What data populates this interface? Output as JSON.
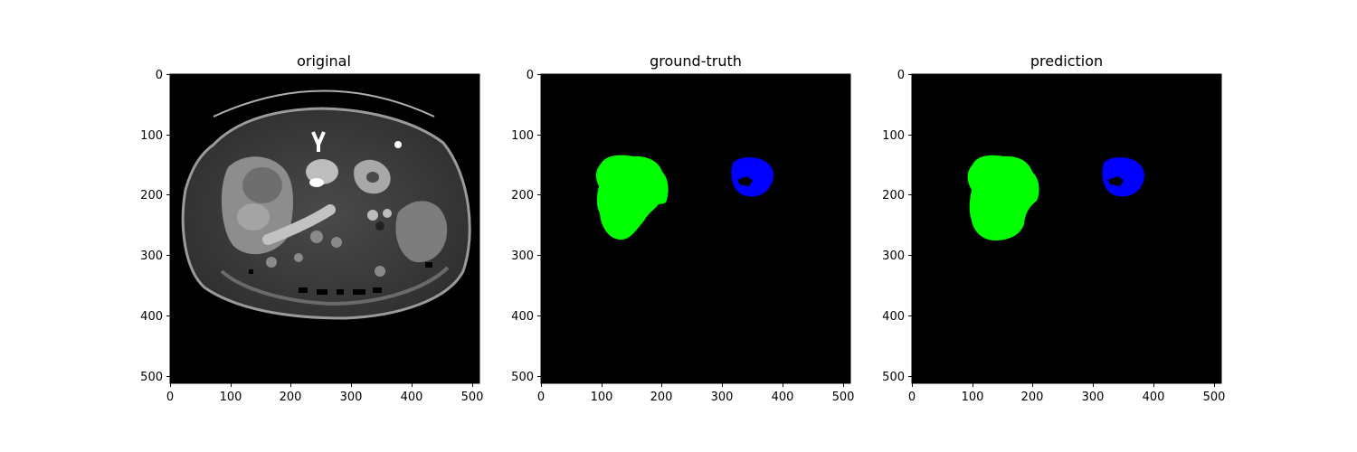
{
  "figure": {
    "panels": [
      {
        "title": "original",
        "xticks": [
          "0",
          "100",
          "200",
          "300",
          "400",
          "500"
        ],
        "yticks": [
          "0",
          "100",
          "200",
          "300",
          "400",
          "500"
        ],
        "content": "ct-slice",
        "colors": {
          "background": "#000000"
        }
      },
      {
        "title": "ground-truth",
        "xticks": [
          "0",
          "100",
          "200",
          "300",
          "400",
          "500"
        ],
        "yticks": [
          "0",
          "100",
          "200",
          "300",
          "400",
          "500"
        ],
        "content": "mask",
        "colors": {
          "background": "#000000",
          "label_1": "#00ff00",
          "label_2": "#0000ff"
        }
      },
      {
        "title": "prediction",
        "xticks": [
          "0",
          "100",
          "200",
          "300",
          "400",
          "500"
        ],
        "yticks": [
          "0",
          "100",
          "200",
          "300",
          "400",
          "500"
        ],
        "content": "mask",
        "colors": {
          "background": "#000000",
          "label_1": "#00ff00",
          "label_2": "#0000ff"
        }
      }
    ]
  }
}
